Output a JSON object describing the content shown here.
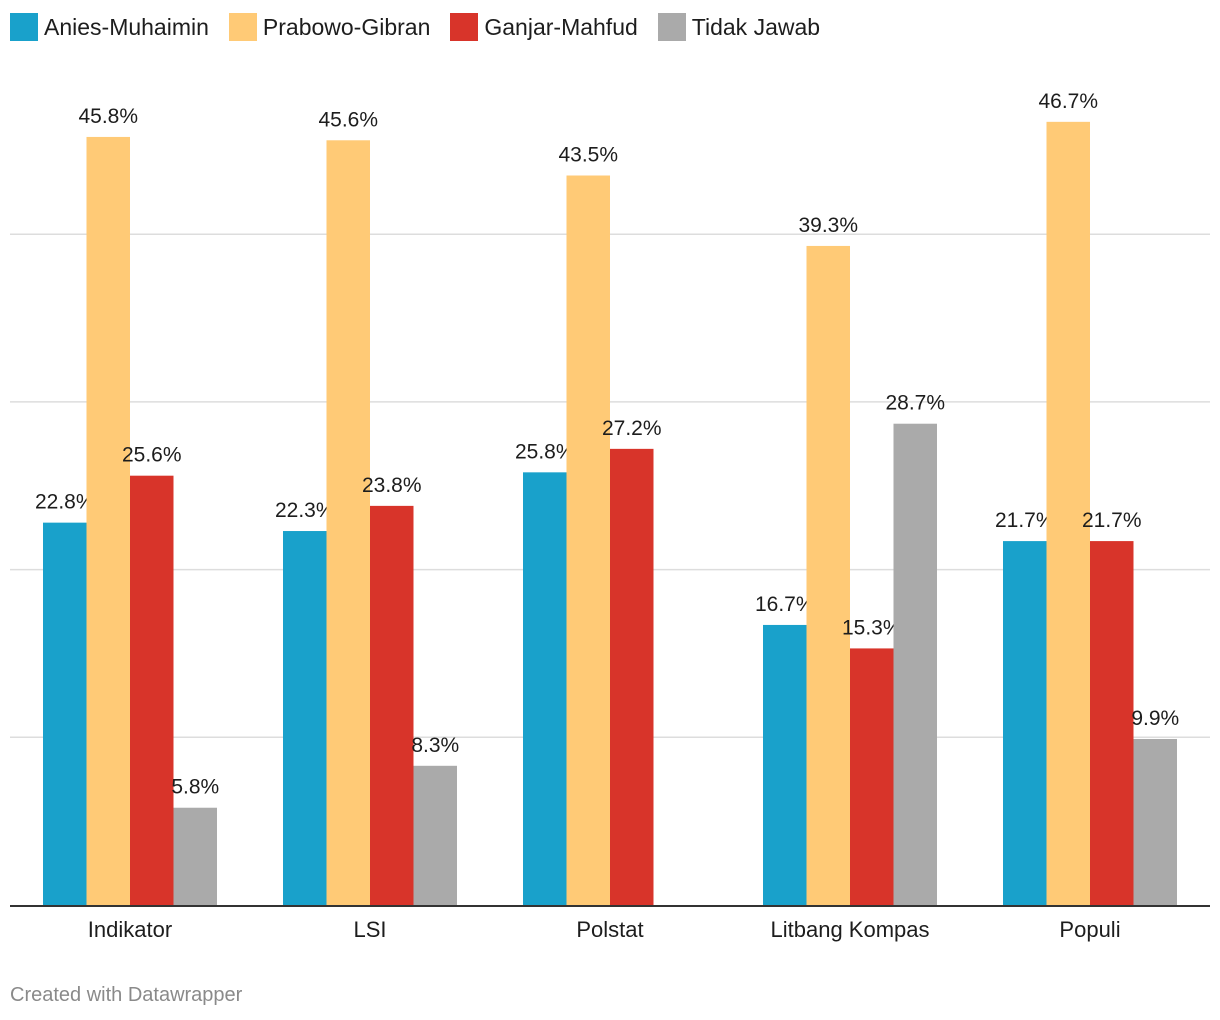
{
  "chart_data": {
    "type": "bar",
    "categories": [
      "Indikator",
      "LSI",
      "Polstat",
      "Litbang Kompas",
      "Populi"
    ],
    "series": [
      {
        "name": "Anies-Muhaimin",
        "color": "#19a1cb",
        "values": [
          22.8,
          22.3,
          25.8,
          16.7,
          21.7
        ],
        "labels": [
          "22.8%",
          "22.3%",
          "25.8%",
          "16.7%",
          "21.7%"
        ]
      },
      {
        "name": "Prabowo-Gibran",
        "color": "#ffca76",
        "values": [
          45.8,
          45.6,
          43.5,
          39.3,
          46.7
        ],
        "labels": [
          "45.8%",
          "45.6%",
          "43.5%",
          "39.3%",
          "46.7%"
        ]
      },
      {
        "name": "Ganjar-Mahfud",
        "color": "#d8342a",
        "values": [
          25.6,
          23.8,
          27.2,
          15.3,
          21.7
        ],
        "labels": [
          "25.6%",
          "23.8%",
          "27.2%",
          "15.3%",
          "21.7%"
        ]
      },
      {
        "name": "Tidak Jawab",
        "color": "#aaaaaa",
        "values": [
          5.8,
          8.3,
          null,
          28.7,
          9.9
        ],
        "labels": [
          "5.8%",
          "8.3%",
          "",
          "28.7%",
          "9.9%"
        ]
      }
    ],
    "ylim": [
      0,
      50
    ],
    "gridlines": [
      10,
      20,
      30,
      40
    ],
    "grid": true,
    "legend_position": "top-left",
    "title": "",
    "xlabel": "",
    "ylabel": ""
  },
  "credit": "Created with Datawrapper"
}
